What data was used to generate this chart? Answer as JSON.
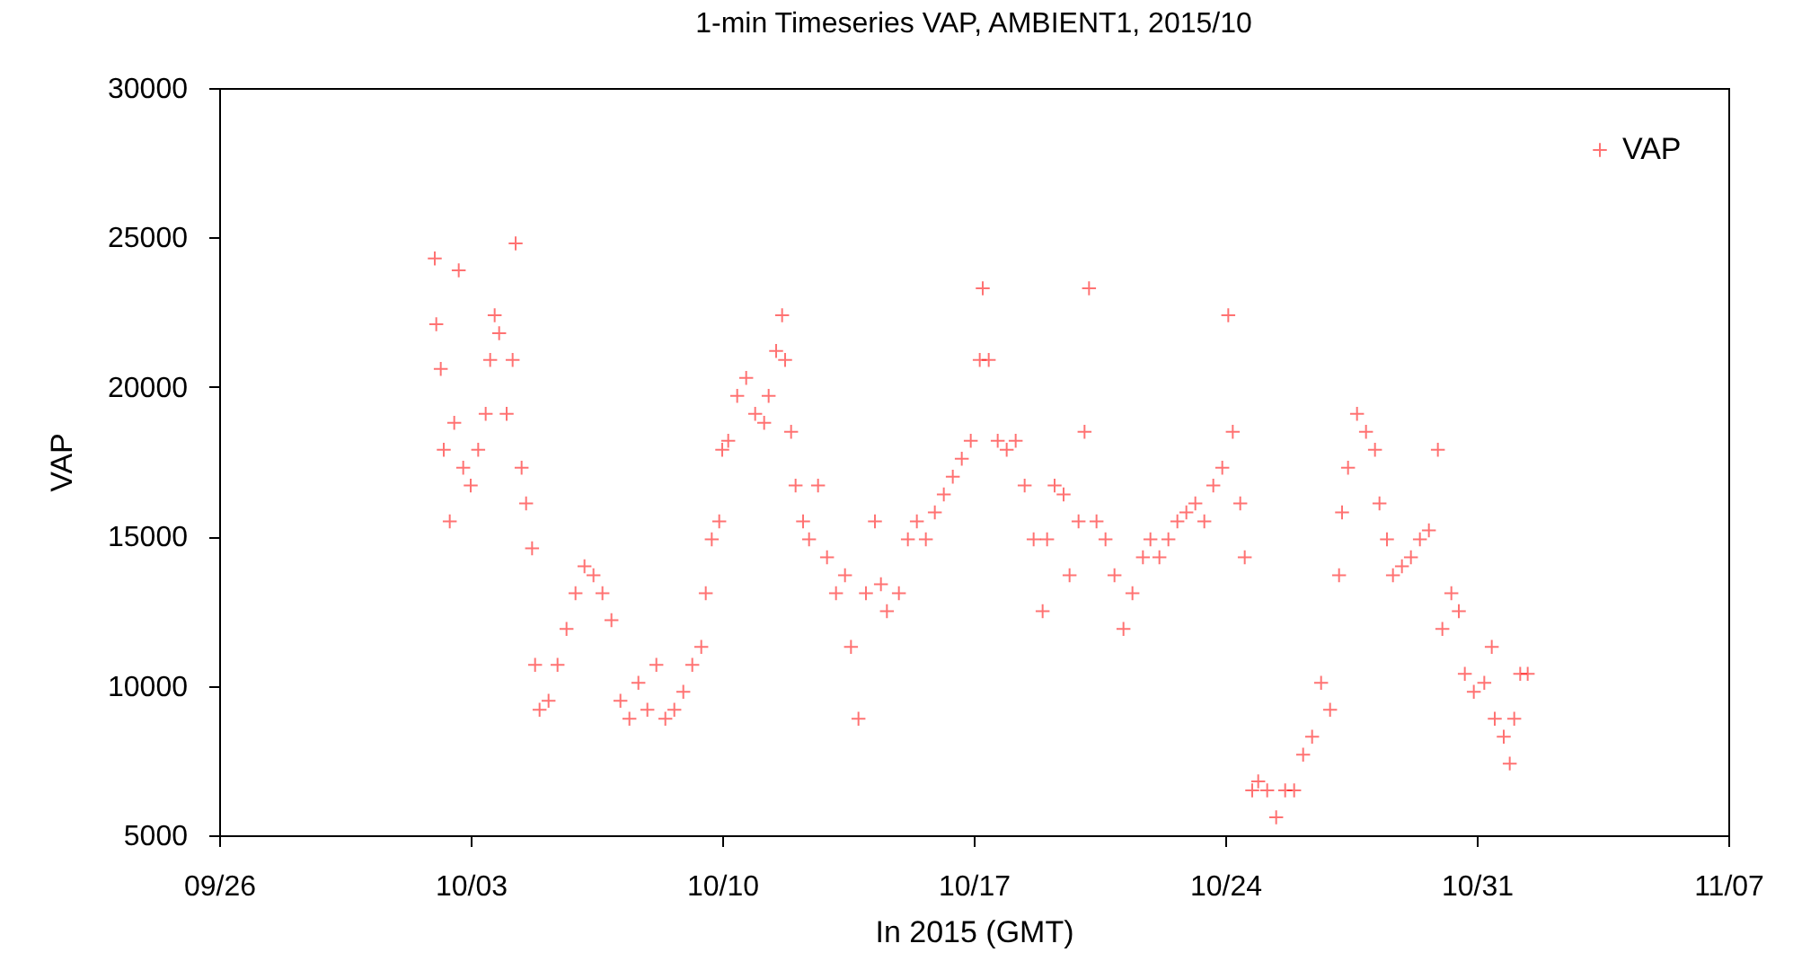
{
  "chart_data": {
    "type": "scatter",
    "title": "1-min Timeseries VAP, AMBIENT1, 2015/10",
    "xlabel": "In 2015 (GMT)",
    "ylabel": "VAP",
    "xlim": [
      "2015-09-26",
      "2015-11-07"
    ],
    "xticks": [
      {
        "value": "2015-09-26",
        "label": "09/26"
      },
      {
        "value": "2015-10-03",
        "label": "10/03"
      },
      {
        "value": "2015-10-10",
        "label": "10/10"
      },
      {
        "value": "2015-10-17",
        "label": "10/17"
      },
      {
        "value": "2015-10-24",
        "label": "10/24"
      },
      {
        "value": "2015-10-31",
        "label": "10/31"
      },
      {
        "value": "2015-11-07",
        "label": "11/07"
      }
    ],
    "ylim": [
      5000,
      30000
    ],
    "yticks": [
      5000,
      10000,
      15000,
      20000,
      25000,
      30000
    ],
    "grid": false,
    "legend": "top right",
    "marker": "cross",
    "series": [
      {
        "name": "VAP",
        "color": "#ff0000",
        "x": [
          "2015-10-02T00:00",
          "2015-10-02T01:00",
          "2015-10-02T04:00",
          "2015-10-02T06:00",
          "2015-10-02T10:00",
          "2015-10-02T13:00",
          "2015-10-02T16:00",
          "2015-10-02T19:00",
          "2015-10-03T00:00",
          "2015-10-03T05:00",
          "2015-10-03T10:00",
          "2015-10-03T13:00",
          "2015-10-03T16:00",
          "2015-10-03T19:00",
          "2015-10-04T00:00",
          "2015-10-04T04:00",
          "2015-10-04T06:00",
          "2015-10-04T10:00",
          "2015-10-04T13:00",
          "2015-10-04T17:00",
          "2015-10-04T19:00",
          "2015-10-04T22:00",
          "2015-10-05T04:00",
          "2015-10-05T10:00",
          "2015-10-05T16:00",
          "2015-10-05T22:00",
          "2015-10-06T04:00",
          "2015-10-06T10:00",
          "2015-10-06T16:00",
          "2015-10-06T22:00",
          "2015-10-07T04:00",
          "2015-10-07T10:00",
          "2015-10-07T16:00",
          "2015-10-07T22:00",
          "2015-10-08T04:00",
          "2015-10-08T10:00",
          "2015-10-08T16:00",
          "2015-10-08T22:00",
          "2015-10-09T04:00",
          "2015-10-09T10:00",
          "2015-10-09T13:00",
          "2015-10-09T17:00",
          "2015-10-09T22:00",
          "2015-10-10T00:00",
          "2015-10-10T04:00",
          "2015-10-10T10:00",
          "2015-10-10T16:00",
          "2015-10-10T22:00",
          "2015-10-11T04:00",
          "2015-10-11T07:00",
          "2015-10-11T12:00",
          "2015-10-11T16:00",
          "2015-10-11T18:00",
          "2015-10-11T22:00",
          "2015-10-12T01:00",
          "2015-10-12T06:00",
          "2015-10-12T10:00",
          "2015-10-12T16:00",
          "2015-10-12T22:00",
          "2015-10-13T04:00",
          "2015-10-13T10:00",
          "2015-10-13T14:00",
          "2015-10-13T19:00",
          "2015-10-14T00:00",
          "2015-10-14T06:00",
          "2015-10-14T10:00",
          "2015-10-14T14:00",
          "2015-10-14T22:00",
          "2015-10-15T04:00",
          "2015-10-15T10:00",
          "2015-10-15T16:00",
          "2015-10-15T22:00",
          "2015-10-16T04:00",
          "2015-10-16T10:00",
          "2015-10-16T16:00",
          "2015-10-16T22:00",
          "2015-10-17T04:00",
          "2015-10-17T06:00",
          "2015-10-17T10:00",
          "2015-10-17T16:00",
          "2015-10-17T22:00",
          "2015-10-18T04:00",
          "2015-10-18T10:00",
          "2015-10-18T16:00",
          "2015-10-18T22:00",
          "2015-10-19T01:00",
          "2015-10-19T06:00",
          "2015-10-19T12:00",
          "2015-10-19T16:00",
          "2015-10-19T22:00",
          "2015-10-20T02:00",
          "2015-10-20T05:00",
          "2015-10-20T10:00",
          "2015-10-20T16:00",
          "2015-10-20T22:00",
          "2015-10-21T04:00",
          "2015-10-21T10:00",
          "2015-10-21T17:00",
          "2015-10-21T22:00",
          "2015-10-22T04:00",
          "2015-10-22T10:00",
          "2015-10-22T16:00",
          "2015-10-22T22:00",
          "2015-10-23T04:00",
          "2015-10-23T10:00",
          "2015-10-23T16:00",
          "2015-10-23T22:00",
          "2015-10-24T02:00",
          "2015-10-24T05:00",
          "2015-10-24T10:00",
          "2015-10-24T13:00",
          "2015-10-24T18:00",
          "2015-10-24T22:00",
          "2015-10-25T04:00",
          "2015-10-25T10:00",
          "2015-10-25T16:00",
          "2015-10-25T22:00",
          "2015-10-26T04:00",
          "2015-10-26T10:00",
          "2015-10-26T16:00",
          "2015-10-26T22:00",
          "2015-10-27T04:00",
          "2015-10-27T06:00",
          "2015-10-27T10:00",
          "2015-10-27T16:00",
          "2015-10-27T22:00",
          "2015-10-28T04:00",
          "2015-10-28T07:00",
          "2015-10-28T12:00",
          "2015-10-28T16:00",
          "2015-10-28T22:00",
          "2015-10-29T04:00",
          "2015-10-29T10:00",
          "2015-10-29T16:00",
          "2015-10-29T22:00",
          "2015-10-30T01:00",
          "2015-10-30T07:00",
          "2015-10-30T12:00",
          "2015-10-30T16:00",
          "2015-10-30T22:00",
          "2015-10-31T05:00",
          "2015-10-31T10:00",
          "2015-10-31T12:00",
          "2015-10-31T18:00",
          "2015-10-31T22:00",
          "2015-11-01T01:00",
          "2015-11-01T05:00",
          "2015-11-01T10:00"
        ],
        "values": [
          24300,
          22100,
          20600,
          17900,
          15500,
          18800,
          23900,
          17300,
          16700,
          17900,
          19100,
          20900,
          22400,
          21800,
          19100,
          20900,
          24800,
          17300,
          16100,
          14600,
          10700,
          9200,
          9500,
          10700,
          11900,
          13100,
          14000,
          13700,
          13100,
          12200,
          9500,
          8900,
          10100,
          9200,
          10700,
          8900,
          9200,
          9800,
          10700,
          11300,
          13100,
          14900,
          15500,
          17900,
          18200,
          19700,
          20300,
          19100,
          18800,
          19700,
          21200,
          22400,
          20900,
          18500,
          16700,
          15500,
          14900,
          16700,
          14300,
          13100,
          13700,
          11300,
          8900,
          13100,
          15500,
          13400,
          12500,
          13100,
          14900,
          15500,
          14900,
          15800,
          16400,
          17000,
          17600,
          18200,
          20900,
          23300,
          20900,
          18200,
          17900,
          18200,
          16700,
          14900,
          12500,
          14900,
          16700,
          16400,
          13700,
          15500,
          18500,
          23300,
          15500,
          14900,
          13700,
          11900,
          13100,
          14300,
          14900,
          14300,
          14900,
          15500,
          15800,
          16100,
          15500,
          16700,
          17300,
          22400,
          18500,
          16100,
          14300,
          6500,
          6800,
          6500,
          5600,
          6500,
          6500,
          7700,
          8300,
          10100,
          9200,
          13700,
          15800,
          17300,
          19100,
          18500,
          17900,
          16100,
          14900,
          13700,
          14000,
          14300,
          14900,
          15200,
          17900,
          11900,
          13100,
          12500,
          10400,
          9800,
          10100,
          11300,
          8900,
          8300,
          7400,
          8900,
          10400,
          10400
        ]
      }
    ]
  }
}
